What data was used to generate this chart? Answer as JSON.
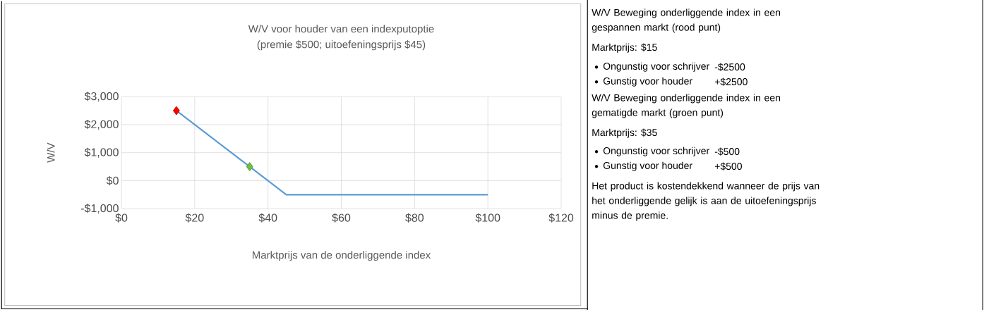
{
  "chart_data": [
    {
      "type": "line",
      "title": "W/V voor houder van een indexputoptie",
      "subtitle": "(premie $500; uitoefeningsprijs $45)",
      "xlabel": "Marktprijs van de onderliggende index",
      "ylabel": "W/V",
      "series": [
        {
          "type": "line",
          "color": "#5b9bd5",
          "x": [
            15,
            45,
            100
          ],
          "values": [
            2500,
            -500,
            -500
          ]
        },
        {
          "type": "scatter",
          "color": "#ff0000",
          "marker": "diamond",
          "x": [
            15
          ],
          "values": [
            2500
          ]
        },
        {
          "type": "scatter",
          "color": "#70c040",
          "marker": "diamond",
          "x": [
            35
          ],
          "values": [
            500
          ]
        }
      ],
      "xlim": [
        0,
        120
      ],
      "xticks": [
        {
          "value": 0,
          "label": "$0"
        },
        {
          "value": 20,
          "label": "$20"
        },
        {
          "value": 40,
          "label": "$40"
        },
        {
          "value": 60,
          "label": "$60"
        },
        {
          "value": 80,
          "label": "$80"
        },
        {
          "value": 100,
          "label": "$100"
        },
        {
          "value": 120,
          "label": "$120"
        }
      ],
      "ylim": [
        -1000,
        3000
      ],
      "yticks": [
        {
          "value": -1000,
          "label": "-$1,000"
        },
        {
          "value": 0,
          "label": "$0"
        },
        {
          "value": 1000,
          "label": "$1,000"
        },
        {
          "value": 2000,
          "label": "$2,000"
        },
        {
          "value": 3000,
          "label": "$3,000"
        }
      ],
      "grid": true
    },
    {
      "type": "other",
      "annotations": [
        "W/V Beweging onderliggende index in een gespannen markt (rood punt)",
        "Marktprijs: $15",
        "Ongunstig voor schrijver",
        "-$2500",
        "Gunstig voor houder",
        "+$2500",
        "W/V Beweging onderliggende index in een gematigde markt (groen punt)",
        "Marktprijs: $35",
        "Ongunstig voor schrijver",
        "-$500",
        "Gunstig voor houder",
        "+$500",
        "Het product is kostendekkend wanneer de prijs van het onderliggende gelijk is aan de uitoefeningsprijs minus de premie."
      ]
    }
  ]
}
